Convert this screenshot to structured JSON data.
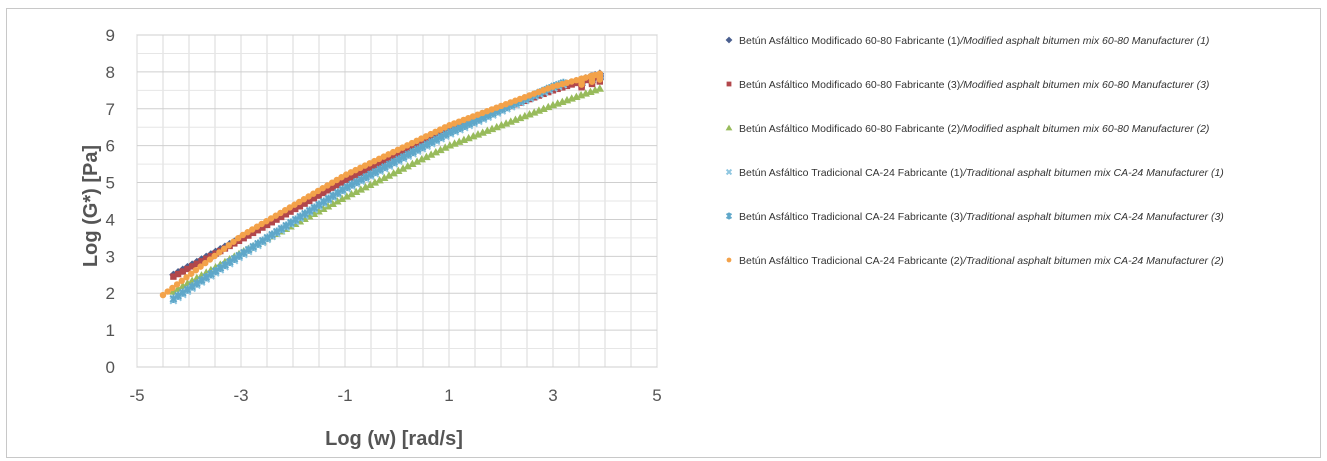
{
  "chart_data": {
    "type": "scatter",
    "xlabel": "Log  (w) [rad/s]",
    "ylabel": "Log (G*) [Pa]",
    "xlim": [
      -5,
      5
    ],
    "ylim": [
      0,
      9
    ],
    "x_ticks": [
      "-5",
      "-3",
      "-1",
      "1",
      "3",
      "5"
    ],
    "x_tick_values": [
      -5,
      -3,
      -1,
      1,
      3,
      5
    ],
    "y_ticks": [
      "0",
      "1",
      "2",
      "3",
      "4",
      "5",
      "6",
      "7",
      "8",
      "9"
    ],
    "y_tick_values": [
      0,
      1,
      2,
      3,
      4,
      5,
      6,
      7,
      8,
      9
    ],
    "grid": true,
    "legend_position": "right",
    "series": [
      {
        "name_es": "Betún Asfáltico Modificado 60-80 Fabricante (1)",
        "name_en": "/Modified asphalt bitumen mix 60-80 Manufacturer (1)",
        "color": "#4a5f8f",
        "marker": "diamond",
        "x_range": [
          -4.3,
          3.9
        ],
        "x": [
          -4.3,
          -3,
          -1,
          1,
          3,
          3.9
        ],
        "y": [
          2.5,
          3.5,
          5.1,
          6.5,
          7.55,
          7.95
        ]
      },
      {
        "name_es": "Betún Asfáltico Modificado 60-80 Fabricante (3)",
        "name_en": "/Modified asphalt bitumen mix 60-80 Manufacturer (3)",
        "color": "#b2474b",
        "marker": "square",
        "x_range": [
          -4.3,
          3.9
        ],
        "x": [
          -4.3,
          -3,
          -1,
          1,
          3,
          3.9
        ],
        "y": [
          2.45,
          3.45,
          5.05,
          6.45,
          7.5,
          7.9
        ]
      },
      {
        "name_es": "Betún Asfáltico Modificado 60-80 Fabricante (2)",
        "name_en": "/Modified asphalt bitumen mix 60-80 Manufacturer (2)",
        "color": "#98bb5c",
        "marker": "triangle",
        "x_range": [
          -4.3,
          3.9
        ],
        "x": [
          -4.3,
          -3,
          -1,
          1,
          3,
          3.9
        ],
        "y": [
          2.05,
          3.1,
          4.6,
          6.0,
          7.1,
          7.55
        ]
      },
      {
        "name_es": "Betún Asfáltico Tradicional CA-24 Fabricante (1)",
        "name_en": "/Traditional asphalt bitumen mix CA-24 Manufacturer (1)",
        "color": "#8ec6e0",
        "marker": "x",
        "x_range": [
          -4.3,
          3.2
        ],
        "x": [
          -4.3,
          -3,
          -1,
          1,
          3,
          3.2
        ],
        "y": [
          1.8,
          3.0,
          4.8,
          6.3,
          7.55,
          7.65
        ]
      },
      {
        "name_es": "Betún Asfáltico Tradicional CA-24 Fabricante (3)",
        "name_en": "/Traditional asphalt bitumen mix CA-24 Manufacturer (3)",
        "color": "#5fa7c9",
        "marker": "star",
        "x_range": [
          -4.3,
          3.2
        ],
        "x": [
          -4.3,
          -3,
          -1,
          1,
          3,
          3.2
        ],
        "y": [
          1.85,
          3.05,
          4.85,
          6.35,
          7.6,
          7.7
        ]
      },
      {
        "name_es": "Betún Asfáltico Tradicional CA-24 Fabricante (2)",
        "name_en": "/Traditional asphalt bitumen mix CA-24 Manufacturer (2)",
        "color": "#f3a24a",
        "marker": "circle",
        "x_range": [
          -4.5,
          3.9
        ],
        "x": [
          -4.5,
          -3,
          -1,
          1,
          3,
          3.9
        ],
        "y": [
          1.95,
          3.55,
          5.2,
          6.55,
          7.6,
          7.95
        ]
      }
    ]
  }
}
